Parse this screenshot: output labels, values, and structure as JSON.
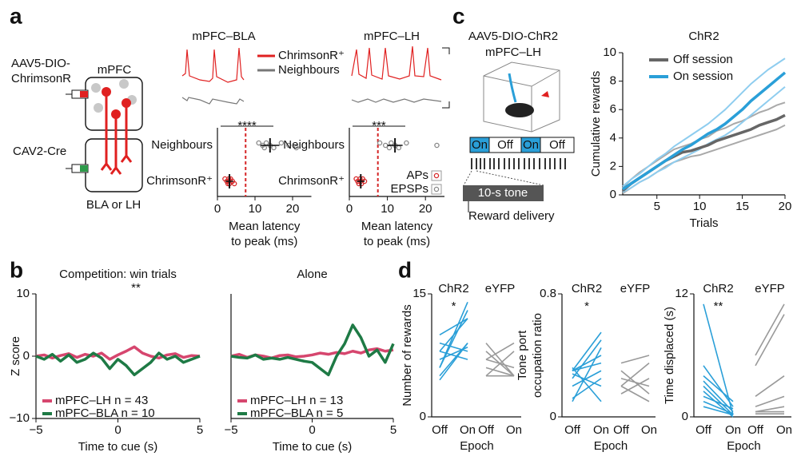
{
  "panels": {
    "a": "a",
    "b": "b",
    "c": "c",
    "d": "d"
  },
  "diagram_a": {
    "virus1": [
      "AAV5-DIO-",
      "ChrimsonR"
    ],
    "region_top": "mPFC",
    "virus2": "CAV2-Cre",
    "region_bottom": "BLA or LH",
    "trace_titles": [
      "mPFC–BLA",
      "mPFC–LH"
    ],
    "trace_legend": [
      "ChrimsonR⁺",
      "Neighbours"
    ]
  },
  "diagram_c": {
    "virus": "AAV5-DIO-ChR2",
    "target": "mPFC–LH",
    "epochs": [
      "On",
      "Off",
      "On",
      "Off"
    ],
    "tone": "10-s tone",
    "reward": "Reward delivery"
  },
  "chart_data": [
    {
      "type": "strip",
      "categories": [
        "Neighbours",
        "ChrimsonR⁺"
      ],
      "xlabel": [
        "Mean latency",
        "to peak (ms)"
      ],
      "xlim": [
        0,
        25
      ],
      "xticks": [
        0,
        10,
        20
      ],
      "significance": "****",
      "threshold": 7.5,
      "series": [
        {
          "name": "Neighbours",
          "color": "#888888",
          "values": [
            11,
            12,
            12.5,
            13,
            14,
            15,
            17,
            19,
            21
          ]
        },
        {
          "name": "ChrimsonR⁺",
          "color": "#d62728",
          "values": [
            2,
            2.5,
            2.8,
            3,
            3,
            3.2,
            3.5,
            4,
            4.5
          ]
        }
      ],
      "means": [
        14,
        3.2
      ],
      "errors": [
        2.5,
        1
      ]
    },
    {
      "type": "strip",
      "categories": [
        "Neighbours",
        "ChrimsonR⁺"
      ],
      "xlabel": [
        "Mean latency",
        "to peak (ms)"
      ],
      "xlim": [
        0,
        25
      ],
      "xticks": [
        0,
        10,
        20
      ],
      "significance": "***",
      "threshold": 7.5,
      "series": [
        {
          "name": "Neighbours",
          "color": "#888888",
          "values": [
            8,
            9.5,
            10.5,
            11,
            12,
            13,
            15,
            23
          ]
        },
        {
          "name": "ChrimsonR⁺",
          "color": "#d62728",
          "values": [
            1.8,
            2.2,
            2.5,
            2.8,
            3,
            3.2,
            3.5,
            4
          ]
        }
      ],
      "means": [
        12,
        3
      ],
      "errors": [
        2,
        1
      ],
      "legend": [
        {
          "label": "APs",
          "color": "#d62728"
        },
        {
          "label": "EPSPs",
          "color": "#888888"
        }
      ]
    },
    {
      "type": "line",
      "title": "ChR2",
      "xlabel": "Trials",
      "ylabel": "Cumulative rewards",
      "xlim": [
        1,
        20
      ],
      "ylim": [
        0,
        10
      ],
      "xticks": [
        5,
        10,
        15,
        20
      ],
      "yticks": [
        0,
        2,
        4,
        6,
        8,
        10
      ],
      "legend": "top-left",
      "x": [
        1,
        2,
        3,
        4,
        5,
        6,
        7,
        8,
        9,
        10,
        11,
        12,
        13,
        14,
        15,
        16,
        17,
        18,
        19,
        20
      ],
      "series": [
        {
          "color": "#a9a9a9",
          "width": 2,
          "values": [
            0.5,
            1.1,
            1.6,
            2.0,
            2.4,
            2.8,
            3.2,
            3.4,
            3.6,
            3.9,
            4.1,
            4.5,
            4.7,
            5.0,
            5.2,
            5.5,
            5.8,
            6.0,
            6.3,
            6.5
          ]
        },
        {
          "color": "#a9a9a9",
          "width": 2,
          "values": [
            0.1,
            0.5,
            0.9,
            1.2,
            1.6,
            2.0,
            2.3,
            2.5,
            2.7,
            2.8,
            3.0,
            3.2,
            3.4,
            3.6,
            3.8,
            4.0,
            4.2,
            4.4,
            4.6,
            4.9
          ]
        },
        {
          "color": "#8fcdef",
          "width": 2,
          "values": [
            0.6,
            1.1,
            1.5,
            2.0,
            2.5,
            2.9,
            3.4,
            3.8,
            4.2,
            4.6,
            5.0,
            5.5,
            6.0,
            6.6,
            7.2,
            7.8,
            8.3,
            8.8,
            9.2,
            9.6
          ]
        },
        {
          "color": "#8fcdef",
          "width": 2,
          "values": [
            0.2,
            0.5,
            0.9,
            1.2,
            1.6,
            1.9,
            2.3,
            2.6,
            2.9,
            3.2,
            3.6,
            3.9,
            4.2,
            4.6,
            5.1,
            5.6,
            6.1,
            6.6,
            7.1,
            7.6
          ]
        },
        {
          "name": "Off session",
          "color": "#666666",
          "width": 3.5,
          "values": [
            0.3,
            0.8,
            1.2,
            1.6,
            2.0,
            2.4,
            2.7,
            3.0,
            3.1,
            3.3,
            3.5,
            3.8,
            4.0,
            4.2,
            4.4,
            4.6,
            4.9,
            5.1,
            5.3,
            5.6
          ]
        },
        {
          "name": "On session",
          "color": "#2a9fd8",
          "width": 3.5,
          "values": [
            0.4,
            0.8,
            1.2,
            1.6,
            2.0,
            2.4,
            2.8,
            3.2,
            3.5,
            3.9,
            4.3,
            4.6,
            5.0,
            5.5,
            6.0,
            6.6,
            7.1,
            7.6,
            8.1,
            8.6
          ]
        }
      ]
    },
    {
      "type": "line",
      "title": "Competition: win trials",
      "annotation": "**",
      "xlabel": "Time to cue (s)",
      "ylabel": "Z score",
      "xlim": [
        -5,
        5
      ],
      "ylim": [
        -10,
        10
      ],
      "xticks": [
        {
          "value": -5,
          "label": "−5"
        },
        0,
        5
      ],
      "yticks": [
        {
          "value": -10,
          "label": "−10"
        },
        0,
        10
      ],
      "legend": "bottom-left",
      "x": [
        -5,
        -4.5,
        -4,
        -3.5,
        -3,
        -2.5,
        -2,
        -1.5,
        -1,
        -0.5,
        0,
        0.5,
        1,
        1.5,
        2,
        2.5,
        3,
        3.5,
        4,
        4.5,
        5
      ],
      "series": [
        {
          "name": "mPFC–LH n = 43",
          "color": "#d6466e",
          "width": 3.5,
          "values": [
            0,
            0.2,
            -0.3,
            0.1,
            0.4,
            -0.2,
            0.3,
            0,
            0.5,
            -0.5,
            0.2,
            0.8,
            1.5,
            0.5,
            0,
            -0.3,
            0.2,
            0.4,
            -0.2,
            0.1,
            0
          ]
        },
        {
          "name": "mPFC–BLA n = 10",
          "color": "#1e7a45",
          "width": 3.5,
          "values": [
            0,
            -0.5,
            0.3,
            -0.8,
            0.2,
            -1,
            -0.5,
            0.5,
            -0.3,
            -2,
            -0.5,
            -1.5,
            -3,
            -2,
            -1,
            0.5,
            -0.5,
            0,
            -1,
            -0.5,
            0
          ]
        }
      ]
    },
    {
      "type": "line",
      "title": "Alone",
      "xlabel": "Time to cue (s)",
      "xlim": [
        -5,
        5
      ],
      "ylim": [
        -10,
        10
      ],
      "xticks": [
        {
          "value": -5,
          "label": "−5"
        },
        0,
        5
      ],
      "legend": "bottom-left",
      "x": [
        -5,
        -4.5,
        -4,
        -3.5,
        -3,
        -2.5,
        -2,
        -1.5,
        -1,
        -0.5,
        0,
        0.5,
        1,
        1.5,
        2,
        2.5,
        3,
        3.5,
        4,
        4.5,
        5
      ],
      "series": [
        {
          "name": "mPFC–LH n = 13",
          "color": "#d6466e",
          "width": 3.5,
          "values": [
            0,
            0.3,
            -0.2,
            0.2,
            0,
            -0.3,
            0.1,
            0.2,
            -0.1,
            0,
            0.2,
            0.5,
            0.3,
            0.6,
            0.4,
            0.8,
            0.5,
            1,
            1.2,
            0.8,
            1
          ]
        },
        {
          "name": "mPFC–BLA n = 5",
          "color": "#1e7a45",
          "width": 3.5,
          "values": [
            0,
            -0.2,
            -0.3,
            0.2,
            -0.5,
            -0.3,
            -0.5,
            -0.2,
            -0.5,
            -0.8,
            -1,
            -2,
            -3,
            0,
            2,
            5,
            3,
            0,
            1,
            -1,
            2
          ]
        }
      ]
    },
    {
      "type": "paired",
      "ylabel": [
        "Number of rewards"
      ],
      "xlabel": "Epoch",
      "categories": [
        "Off",
        "On"
      ],
      "ylim": [
        0,
        15
      ],
      "yticks": [
        0,
        15
      ],
      "annotation": "*",
      "series": [
        {
          "name": "ChR2",
          "color": "#2a9fd8",
          "pairs": [
            [
              6,
              14
            ],
            [
              5,
              9
            ],
            [
              7,
              8.5
            ],
            [
              8,
              7
            ],
            [
              9,
              8
            ],
            [
              10,
              12
            ],
            [
              8,
              12
            ],
            [
              4.5,
              9
            ],
            [
              6,
              13
            ]
          ]
        },
        {
          "name": "eYFP",
          "color": "#999999",
          "pairs": [
            [
              9,
              5
            ],
            [
              7,
              9
            ],
            [
              6,
              5
            ],
            [
              5,
              8
            ],
            [
              5,
              5
            ],
            [
              8,
              5
            ],
            [
              7,
              6
            ]
          ]
        }
      ]
    },
    {
      "type": "paired",
      "ylabel": [
        "Tone port",
        "occupation ratio"
      ],
      "xlabel": "Epoch",
      "categories": [
        "Off",
        "On"
      ],
      "ylim": [
        0,
        0.8
      ],
      "yticks": [
        0,
        0.8
      ],
      "annotation": "*",
      "series": [
        {
          "name": "ChR2",
          "color": "#2a9fd8",
          "pairs": [
            [
              0.3,
              0.55
            ],
            [
              0.28,
              0.2
            ],
            [
              0.25,
              0.5
            ],
            [
              0.3,
              0.35
            ],
            [
              0.32,
              0.1
            ],
            [
              0.1,
              0.45
            ],
            [
              0.2,
              0.3
            ],
            [
              0.3,
              0.4
            ],
            [
              0.12,
              0.25
            ]
          ]
        },
        {
          "name": "eYFP",
          "color": "#999999",
          "pairs": [
            [
              0.35,
              0.4
            ],
            [
              0.3,
              0.15
            ],
            [
              0.2,
              0.35
            ],
            [
              0.15,
              0.25
            ],
            [
              0.2,
              0.1
            ],
            [
              0.25,
              0.2
            ]
          ]
        }
      ]
    },
    {
      "type": "paired",
      "ylabel": [
        "Time displaced (s)"
      ],
      "xlabel": "Epoch",
      "categories": [
        "Off",
        "On"
      ],
      "ylim": [
        0,
        12
      ],
      "yticks": [
        0,
        12
      ],
      "annotation": "**",
      "series": [
        {
          "name": "ChR2",
          "color": "#2a9fd8",
          "pairs": [
            [
              11,
              0.2
            ],
            [
              5,
              1
            ],
            [
              4,
              1.5
            ],
            [
              3.5,
              0.5
            ],
            [
              3,
              0.2
            ],
            [
              2.5,
              0
            ],
            [
              2,
              0.8
            ],
            [
              1.5,
              0.3
            ],
            [
              1,
              0.2
            ]
          ]
        },
        {
          "name": "eYFP",
          "color": "#999999",
          "pairs": [
            [
              6,
              11
            ],
            [
              5,
              10
            ],
            [
              2,
              4
            ],
            [
              1,
              2
            ],
            [
              0.5,
              1
            ],
            [
              0.5,
              0.5
            ],
            [
              0.3,
              0.3
            ]
          ]
        }
      ]
    }
  ]
}
